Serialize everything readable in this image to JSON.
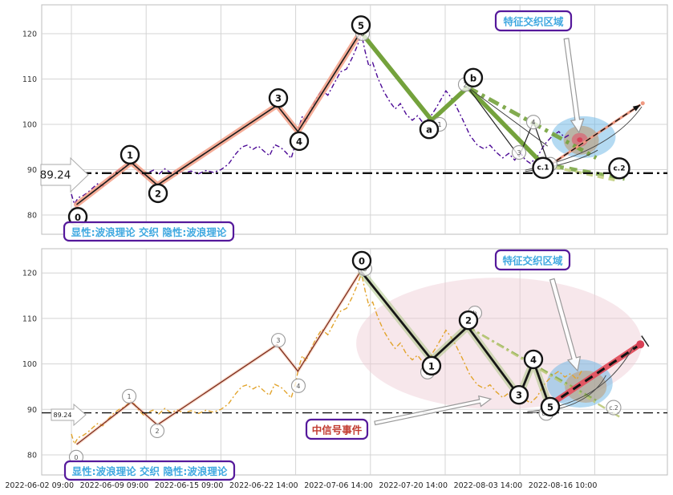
{
  "annotations": {
    "feature_zone_label": "特征交织区域",
    "explicit_hidden_label": "显性:波浪理论 交织 隐性:波浪理论",
    "mid_signal_label": "中信号事件",
    "threshold_label": "89.24"
  },
  "colors": {
    "grid": "#d4d4d4",
    "spine": "#bdbdbd",
    "price_top": "#4c0a96",
    "price_bottom": "#e2a42c",
    "impulse_line": "#1b1b1b",
    "impulse_glow": "#f2997e",
    "impulse_bottom": "#7e2d1d",
    "impulse_bottom_glow": "#f0a078",
    "green": "#74a23c",
    "green_pale": "#c8d48c",
    "black_wave": "#161616",
    "black_wave_glow": "#a8c47e",
    "forecast_top": "#ef9880",
    "forecast_bottom": "#e25663",
    "forecast_dot": "#d84055",
    "threshold": "#111111",
    "box_border": "#55199b",
    "cyan_text": "#3fa8e0",
    "red_text": "#c23b30",
    "blue_ellipse": "#6ab5e5",
    "tan_ellipse": "#bd9668",
    "red_ellipse": "#e0556a",
    "pink_ellipse": "#eec9d2",
    "arrow_outline": "#999999",
    "tick_text": "#222222",
    "circle_bold": "#141414",
    "circle_thin": "#999999"
  },
  "chart_data": {
    "type": "line",
    "x_tick_labels": [
      "2022-06-02 09:00",
      "2022-06-09 09:00",
      "2022-06-15 09:00",
      "2022-06-22 14:00",
      "2022-07-06 14:00",
      "2022-07-20 14:00",
      "2022-08-03 14:00",
      "2022-08-16 10:00"
    ],
    "y_ticks": [
      80,
      90,
      100,
      110,
      120
    ],
    "ylim": [
      76.5,
      126
    ],
    "threshold_value": 89.24,
    "price": {
      "points": [
        [
          0.0,
          84.6
        ],
        [
          0.04,
          82.4
        ],
        [
          0.09,
          83.8
        ],
        [
          0.16,
          84.3
        ],
        [
          0.22,
          85.0
        ],
        [
          0.3,
          86.2
        ],
        [
          0.36,
          87.0
        ],
        [
          0.42,
          86.4
        ],
        [
          0.5,
          88.0
        ],
        [
          0.57,
          89.2
        ],
        [
          0.64,
          90.0
        ],
        [
          0.72,
          90.6
        ],
        [
          0.79,
          91.9
        ],
        [
          0.84,
          91.2
        ],
        [
          0.9,
          89.8
        ],
        [
          0.97,
          88.7
        ],
        [
          1.03,
          89.4
        ],
        [
          1.1,
          89.9
        ],
        [
          1.17,
          89.0
        ],
        [
          1.25,
          90.2
        ],
        [
          1.33,
          89.3
        ],
        [
          1.42,
          89.9
        ],
        [
          1.5,
          89.2
        ],
        [
          1.6,
          89.7
        ],
        [
          1.7,
          89.1
        ],
        [
          1.8,
          89.8
        ],
        [
          1.9,
          89.4
        ],
        [
          2.0,
          90.0
        ],
        [
          2.1,
          91.2
        ],
        [
          2.2,
          93.5
        ],
        [
          2.28,
          95.0
        ],
        [
          2.35,
          95.4
        ],
        [
          2.43,
          94.5
        ],
        [
          2.5,
          95.2
        ],
        [
          2.58,
          94.0
        ],
        [
          2.65,
          93.1
        ],
        [
          2.72,
          95.5
        ],
        [
          2.8,
          94.9
        ],
        [
          2.87,
          93.8
        ],
        [
          2.94,
          92.5
        ],
        [
          3.0,
          95.8
        ],
        [
          3.04,
          99.2
        ],
        [
          3.09,
          101.8
        ],
        [
          3.14,
          100.6
        ],
        [
          3.2,
          103.2
        ],
        [
          3.28,
          105.8
        ],
        [
          3.35,
          107.6
        ],
        [
          3.43,
          106.4
        ],
        [
          3.52,
          109.2
        ],
        [
          3.6,
          111.6
        ],
        [
          3.68,
          112.2
        ],
        [
          3.76,
          114.8
        ],
        [
          3.83,
          117.6
        ],
        [
          3.88,
          119.9
        ],
        [
          3.93,
          116.0
        ],
        [
          3.98,
          112.8
        ],
        [
          4.03,
          113.6
        ],
        [
          4.1,
          110.2
        ],
        [
          4.18,
          107.2
        ],
        [
          4.26,
          105.0
        ],
        [
          4.33,
          103.4
        ],
        [
          4.4,
          104.6
        ],
        [
          4.48,
          102.2
        ],
        [
          4.56,
          100.9
        ],
        [
          4.63,
          101.9
        ],
        [
          4.71,
          100.2
        ],
        [
          4.79,
          101.4
        ],
        [
          4.87,
          103.4
        ],
        [
          4.94,
          105.4
        ],
        [
          5.01,
          107.4
        ],
        [
          5.07,
          106.1
        ],
        [
          5.14,
          104.2
        ],
        [
          5.23,
          101.2
        ],
        [
          5.33,
          97.6
        ],
        [
          5.43,
          95.4
        ],
        [
          5.52,
          94.6
        ],
        [
          5.6,
          95.4
        ],
        [
          5.68,
          93.9
        ],
        [
          5.77,
          92.6
        ],
        [
          5.85,
          93.6
        ],
        [
          5.93,
          92.1
        ],
        [
          6.0,
          93.9
        ],
        [
          6.07,
          92.2
        ],
        [
          6.14,
          91.4
        ],
        [
          6.23,
          92.8
        ],
        [
          6.33,
          95.6
        ],
        [
          6.43,
          97.4
        ],
        [
          6.52,
          98.4
        ],
        [
          6.6,
          97.1
        ],
        [
          6.68,
          97.9
        ],
        [
          6.76,
          96.6
        ],
        [
          6.83,
          98.6
        ]
      ]
    },
    "waves": {
      "impulse": [
        [
          0.07,
          82.3
        ],
        [
          0.8,
          91.6
        ],
        [
          1.15,
          86.6
        ],
        [
          2.75,
          104.2
        ],
        [
          3.03,
          98.4
        ],
        [
          3.87,
          120.4
        ]
      ],
      "abc": [
        [
          3.87,
          120.4
        ],
        [
          4.82,
          100.9
        ],
        [
          5.3,
          108.2
        ],
        [
          6.3,
          91.3
        ]
      ],
      "abc_dashed_ext": [
        [
          6.3,
          91.3
        ],
        [
          7.4,
          88.0
        ]
      ],
      "abc_dashdot": [
        [
          5.3,
          108.2
        ],
        [
          7.02,
          92.6
        ]
      ],
      "pale_dashed": [
        [
          6.45,
          90.6
        ],
        [
          7.3,
          87.6
        ]
      ],
      "sub": [
        [
          5.3,
          108.2
        ],
        [
          5.99,
          92.9
        ],
        [
          6.18,
          100.6
        ],
        [
          6.39,
          90.9
        ]
      ],
      "fan": [
        [
          5.3,
          108.2
        ],
        [
          6.37,
          95.2
        ]
      ],
      "forecast": [
        [
          6.39,
          90.9
        ],
        [
          7.61,
          104.3
        ]
      ],
      "bottom_black": [
        [
          3.87,
          120.4
        ],
        [
          4.82,
          100.9
        ],
        [
          5.3,
          108.2
        ],
        [
          5.99,
          92.9
        ],
        [
          6.18,
          100.6
        ],
        [
          6.39,
          90.9
        ]
      ],
      "bottom_dashdot1": [
        [
          5.3,
          108.2
        ],
        [
          7.02,
          92.0
        ]
      ],
      "bottom_dashdot2": [
        [
          5.3,
          108.2
        ],
        [
          7.35,
          88.2
        ]
      ]
    },
    "labels_top_bold": [
      [
        "0",
        0.086,
        79.6
      ],
      [
        "1",
        0.783,
        93.3
      ],
      [
        "2",
        1.159,
        84.8
      ],
      [
        "3",
        2.768,
        105.8
      ],
      [
        "4",
        3.047,
        96.3
      ],
      [
        "5",
        3.873,
        121.9
      ],
      [
        "a",
        4.785,
        98.9
      ],
      [
        "b",
        5.375,
        110.3
      ],
      [
        "c.1",
        6.309,
        90.4
      ],
      [
        "c.2",
        7.328,
        90.3
      ]
    ],
    "labels_top_thin": [
      [
        "0",
        3.895,
        120.0
      ],
      [
        "1",
        4.925,
        100.0
      ],
      [
        "2",
        5.268,
        108.8
      ],
      [
        "3",
        5.987,
        93.8
      ],
      [
        "4",
        6.18,
        100.5
      ],
      [
        "5",
        6.405,
        91.2
      ]
    ],
    "labels_bottom_bold": [
      [
        "0",
        3.884,
        122.7
      ],
      [
        "1",
        4.817,
        99.6
      ],
      [
        "2",
        5.311,
        109.6
      ],
      [
        "3",
        5.987,
        93.2
      ],
      [
        "4",
        6.18,
        101.0
      ],
      [
        "5",
        6.405,
        90.6
      ]
    ],
    "labels_bottom_thin": [
      [
        "0",
        0.064,
        79.5
      ],
      [
        "1",
        0.773,
        92.9
      ],
      [
        "2",
        1.148,
        85.3
      ],
      [
        "3",
        2.768,
        105.2
      ],
      [
        "4",
        3.036,
        95.2
      ],
      [
        "5",
        3.927,
        120.9
      ],
      [
        "a",
        4.764,
        98.2
      ],
      [
        "b",
        5.397,
        111.2
      ],
      [
        "c.1",
        6.352,
        89.2
      ],
      [
        "c.2",
        7.253,
        90.4
      ]
    ]
  }
}
